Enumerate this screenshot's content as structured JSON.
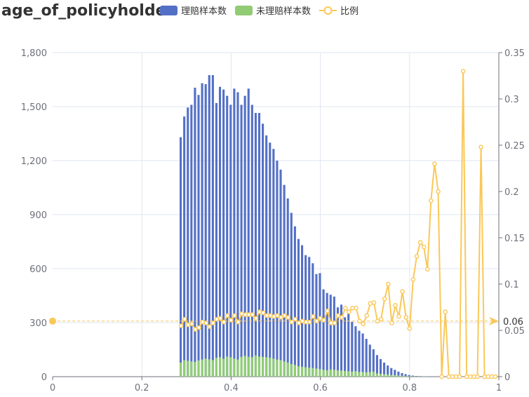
{
  "chart_data": {
    "type": "bar",
    "title": "age_of_policyholder",
    "legend": [
      "理赔样本数",
      "未理赔样本数",
      "比例"
    ],
    "legend_position": "top",
    "colors": {
      "claims": "#5470c6",
      "no_claims": "#91cc75",
      "ratio": "#fac858"
    },
    "x_axis": {
      "min": 0,
      "max": 1,
      "ticks": [
        "0",
        "0.2",
        "0.4",
        "0.6",
        "0.8",
        "1"
      ]
    },
    "y_left": {
      "min": 0,
      "max": 1800,
      "ticks": [
        "0",
        "300",
        "600",
        "900",
        "1,200",
        "1,500",
        "1,800"
      ]
    },
    "y_right": {
      "min": 0,
      "max": 0.35,
      "ticks": [
        "0",
        "0.05",
        "0.1",
        "0.15",
        "0.2",
        "0.25",
        "0.3",
        "0.35"
      ]
    },
    "reference_line": {
      "value": 0.06,
      "label": "0.06"
    },
    "bar_width_x": 0.0068,
    "series": [
      {
        "name": "理赔样本数",
        "axis": "left",
        "x": [
          0.288,
          0.296,
          0.304,
          0.312,
          0.32,
          0.328,
          0.336,
          0.344,
          0.352,
          0.36,
          0.368,
          0.376,
          0.384,
          0.392,
          0.4,
          0.408,
          0.416,
          0.424,
          0.432,
          0.44,
          0.448,
          0.456,
          0.464,
          0.472,
          0.48,
          0.488,
          0.496,
          0.504,
          0.512,
          0.52,
          0.528,
          0.536,
          0.544,
          0.552,
          0.56,
          0.568,
          0.576,
          0.584,
          0.592,
          0.6,
          0.608,
          0.616,
          0.624,
          0.632,
          0.64,
          0.648,
          0.656,
          0.664,
          0.672,
          0.68,
          0.688,
          0.696,
          0.704,
          0.712,
          0.72,
          0.728,
          0.736,
          0.744,
          0.752,
          0.76,
          0.768,
          0.776,
          0.784,
          0.792,
          0.8,
          0.808,
          0.816,
          0.824,
          0.832,
          0.84,
          0.848,
          0.856,
          0.864,
          0.872,
          0.88,
          0.888,
          0.896,
          0.904,
          0.912,
          0.92,
          0.928,
          0.936,
          0.944,
          0.952,
          0.96,
          0.968,
          0.976,
          0.984,
          0.992
        ],
        "values": [
          1330,
          1445,
          1495,
          1510,
          1605,
          1565,
          1630,
          1625,
          1675,
          1675,
          1520,
          1610,
          1595,
          1560,
          1510,
          1600,
          1580,
          1510,
          1560,
          1600,
          1510,
          1465,
          1465,
          1405,
          1340,
          1300,
          1265,
          1200,
          1150,
          1065,
          990,
          910,
          835,
          765,
          730,
          675,
          665,
          630,
          570,
          575,
          485,
          465,
          455,
          445,
          385,
          400,
          330,
          350,
          305,
          280,
          255,
          240,
          210,
          178,
          152,
          120,
          98,
          78,
          62,
          48,
          38,
          28,
          20,
          14,
          9,
          6,
          4,
          3,
          2,
          2,
          1,
          1,
          1,
          1,
          1,
          0,
          0,
          0,
          0,
          0,
          0,
          0,
          0,
          0,
          0,
          0,
          0,
          0,
          0
        ]
      },
      {
        "name": "未理赔样本数",
        "axis": "left",
        "x": [
          0.288,
          0.296,
          0.304,
          0.312,
          0.32,
          0.328,
          0.336,
          0.344,
          0.352,
          0.36,
          0.368,
          0.376,
          0.384,
          0.392,
          0.4,
          0.408,
          0.416,
          0.424,
          0.432,
          0.44,
          0.448,
          0.456,
          0.464,
          0.472,
          0.48,
          0.488,
          0.496,
          0.504,
          0.512,
          0.52,
          0.528,
          0.536,
          0.544,
          0.552,
          0.56,
          0.568,
          0.576,
          0.584,
          0.592,
          0.6,
          0.608,
          0.616,
          0.624,
          0.632,
          0.64,
          0.648,
          0.656,
          0.664,
          0.672,
          0.68,
          0.688,
          0.696,
          0.704,
          0.712,
          0.72,
          0.728,
          0.736,
          0.744,
          0.752,
          0.76,
          0.768,
          0.776,
          0.784,
          0.792,
          0.8,
          0.808,
          0.816,
          0.824,
          0.832,
          0.84,
          0.848,
          0.856,
          0.864,
          0.872,
          0.88,
          0.888,
          0.896,
          0.904,
          0.912,
          0.92,
          0.928,
          0.936,
          0.944,
          0.952,
          0.96,
          0.968,
          0.976,
          0.984,
          0.992
        ],
        "values": [
          78,
          92,
          88,
          85,
          82,
          90,
          95,
          100,
          96,
          92,
          105,
          108,
          100,
          112,
          108,
          100,
          95,
          110,
          115,
          110,
          108,
          118,
          112,
          110,
          108,
          105,
          100,
          95,
          92,
          85,
          78,
          70,
          65,
          58,
          55,
          52,
          50,
          48,
          45,
          42,
          38,
          36,
          40,
          38,
          35,
          34,
          32,
          30,
          28,
          30,
          26,
          26,
          24,
          26,
          28,
          18,
          16,
          14,
          12,
          10,
          8,
          6,
          5,
          4,
          3,
          2,
          2,
          1,
          1,
          1,
          0,
          0,
          0,
          0,
          0,
          0,
          0,
          0,
          0,
          0,
          0,
          0,
          0,
          0,
          0,
          0,
          0,
          0,
          0
        ]
      },
      {
        "name": "比例",
        "axis": "right",
        "type": "line",
        "x": [
          0.288,
          0.296,
          0.304,
          0.312,
          0.32,
          0.328,
          0.336,
          0.344,
          0.352,
          0.36,
          0.368,
          0.376,
          0.384,
          0.392,
          0.4,
          0.408,
          0.416,
          0.424,
          0.432,
          0.44,
          0.448,
          0.456,
          0.464,
          0.472,
          0.48,
          0.488,
          0.496,
          0.504,
          0.512,
          0.52,
          0.528,
          0.536,
          0.544,
          0.552,
          0.56,
          0.568,
          0.576,
          0.584,
          0.592,
          0.6,
          0.608,
          0.616,
          0.624,
          0.632,
          0.64,
          0.648,
          0.656,
          0.664,
          0.672,
          0.68,
          0.688,
          0.696,
          0.704,
          0.712,
          0.72,
          0.728,
          0.736,
          0.744,
          0.752,
          0.76,
          0.768,
          0.776,
          0.784,
          0.792,
          0.8,
          0.808,
          0.816,
          0.824,
          0.832,
          0.84,
          0.848,
          0.856,
          0.864,
          0.872,
          0.88,
          0.888,
          0.896,
          0.904,
          0.912,
          0.92,
          0.928,
          0.936,
          0.944,
          0.952,
          0.96,
          0.968,
          0.976,
          0.984,
          0.992
        ],
        "values": [
          0.055,
          0.062,
          0.056,
          0.057,
          0.051,
          0.053,
          0.059,
          0.058,
          0.054,
          0.058,
          0.062,
          0.063,
          0.059,
          0.066,
          0.061,
          0.066,
          0.059,
          0.068,
          0.067,
          0.067,
          0.067,
          0.063,
          0.07,
          0.069,
          0.066,
          0.066,
          0.065,
          0.066,
          0.064,
          0.066,
          0.064,
          0.059,
          0.062,
          0.058,
          0.06,
          0.059,
          0.059,
          0.065,
          0.06,
          0.063,
          0.061,
          0.071,
          0.058,
          0.058,
          0.066,
          0.064,
          0.074,
          0.07,
          0.074,
          0.074,
          0.06,
          0.057,
          0.066,
          0.079,
          0.08,
          0.06,
          0.062,
          0.084,
          0.1,
          0.058,
          0.077,
          0.065,
          0.092,
          0.064,
          0.052,
          0.105,
          0.13,
          0.145,
          0.14,
          0.116,
          0.19,
          0.23,
          0.2,
          0.0,
          0.07,
          0.0,
          0.0,
          0.0,
          0.0,
          0.33,
          0.0,
          0.0,
          0.0,
          0.0,
          0.248,
          0.0,
          0.0,
          0.0,
          0.0
        ]
      }
    ]
  }
}
